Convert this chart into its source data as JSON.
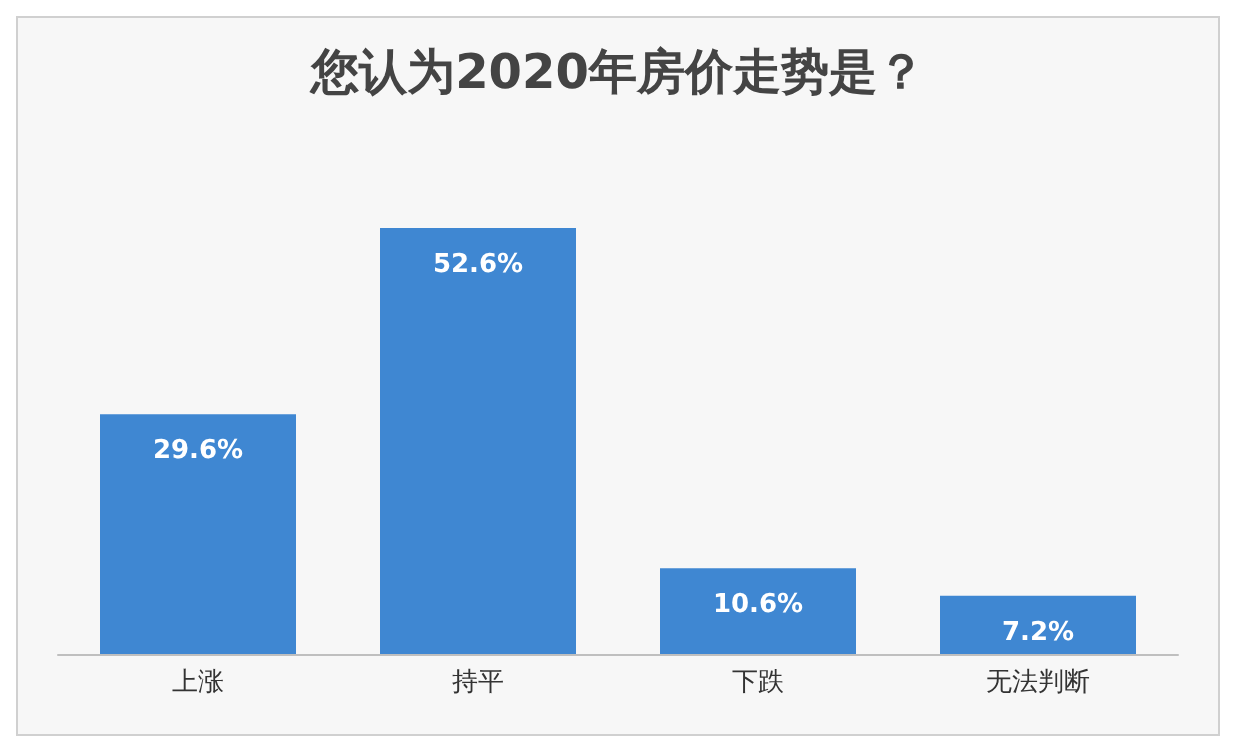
{
  "chart_data": {
    "type": "bar",
    "title": "您认为2020年房价走势是？",
    "categories": [
      "上涨",
      "持平",
      "下跌",
      "无法判断"
    ],
    "values": [
      29.6,
      52.6,
      10.6,
      7.2
    ],
    "value_labels": [
      "29.6%",
      "52.6%",
      "10.6%",
      "7.2%"
    ],
    "color": "#3f87d2"
  }
}
